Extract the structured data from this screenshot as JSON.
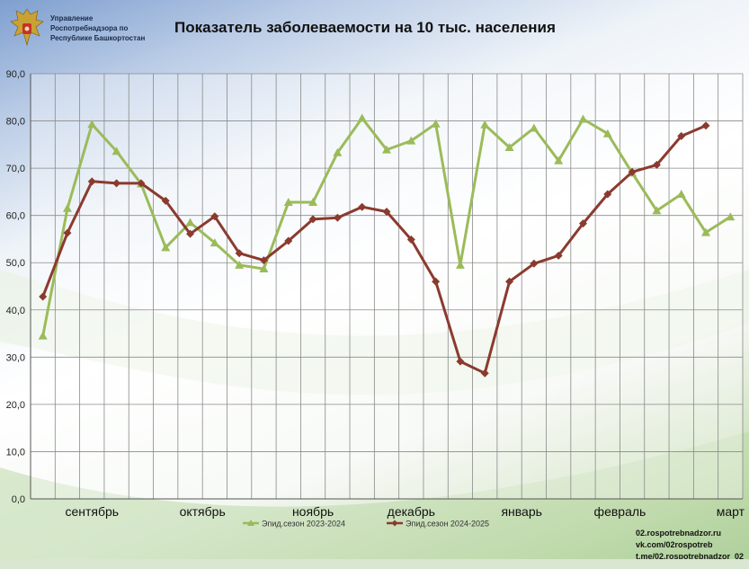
{
  "header": {
    "org_line1": "Управление",
    "org_line2": "Роспотребнадзора по",
    "org_line3": "Республике Башкортостан",
    "emblem_icon": "double-headed-eagle-emblem",
    "title": "Показатель заболеваемости на 10 тыс. населения"
  },
  "contacts": {
    "site": "02.rospotrebnadzor.ru",
    "vk": "vk.com/02rospotreb",
    "tg": "t.me/02.rospotrebnadzor_02"
  },
  "chart_data": {
    "type": "line",
    "title": "Показатель заболеваемости на 10 тыс. населения",
    "xlabel": "",
    "ylabel": "",
    "ylim": [
      0,
      90
    ],
    "yticks": [
      "0,0",
      "10,0",
      "20,0",
      "30,0",
      "40,0",
      "50,0",
      "60,0",
      "70,0",
      "80,0",
      "90,0"
    ],
    "grid": true,
    "legend_position": "bottom",
    "month_labels": [
      {
        "label": "сентябрь",
        "week": 2.5
      },
      {
        "label": "октябрь",
        "week": 7
      },
      {
        "label": "ноябрь",
        "week": 11.5
      },
      {
        "label": "декабрь",
        "week": 15.5
      },
      {
        "label": "январь",
        "week": 20
      },
      {
        "label": "февраль",
        "week": 24
      },
      {
        "label": "март",
        "week": 28.5
      }
    ],
    "x": [
      0,
      1,
      2,
      3,
      4,
      5,
      6,
      7,
      8,
      9,
      10,
      11,
      12,
      13,
      14,
      15,
      16,
      17,
      18,
      19,
      20,
      21,
      22,
      23,
      24,
      25,
      26,
      27,
      28
    ],
    "series": [
      {
        "name": "Эпид.сезон 2023-2024",
        "color": "#9bbb59",
        "marker": "triangle",
        "values": [
          34.5,
          61.5,
          79.3,
          73.6,
          66.7,
          53.2,
          58.5,
          54.2,
          49.5,
          48.7,
          62.8,
          62.8,
          73.3,
          80.6,
          73.9,
          75.8,
          79.4,
          49.5,
          79.2,
          74.4,
          78.5,
          71.6,
          80.4,
          77.3,
          69.0,
          61.0,
          64.5,
          56.4,
          59.7
        ]
      },
      {
        "name": "Эпид.сезон 2024-2025",
        "color": "#8b3a2f",
        "marker": "diamond",
        "values": [
          42.8,
          56.3,
          67.2,
          66.8,
          66.8,
          63.1,
          56.1,
          59.8,
          52.0,
          50.5,
          54.6,
          59.2,
          59.5,
          61.8,
          60.8,
          54.9,
          46.0,
          29.1,
          26.6,
          46.0,
          49.8,
          51.5,
          58.3,
          64.5,
          69.2,
          70.7,
          76.8,
          79.0,
          null
        ]
      }
    ]
  }
}
